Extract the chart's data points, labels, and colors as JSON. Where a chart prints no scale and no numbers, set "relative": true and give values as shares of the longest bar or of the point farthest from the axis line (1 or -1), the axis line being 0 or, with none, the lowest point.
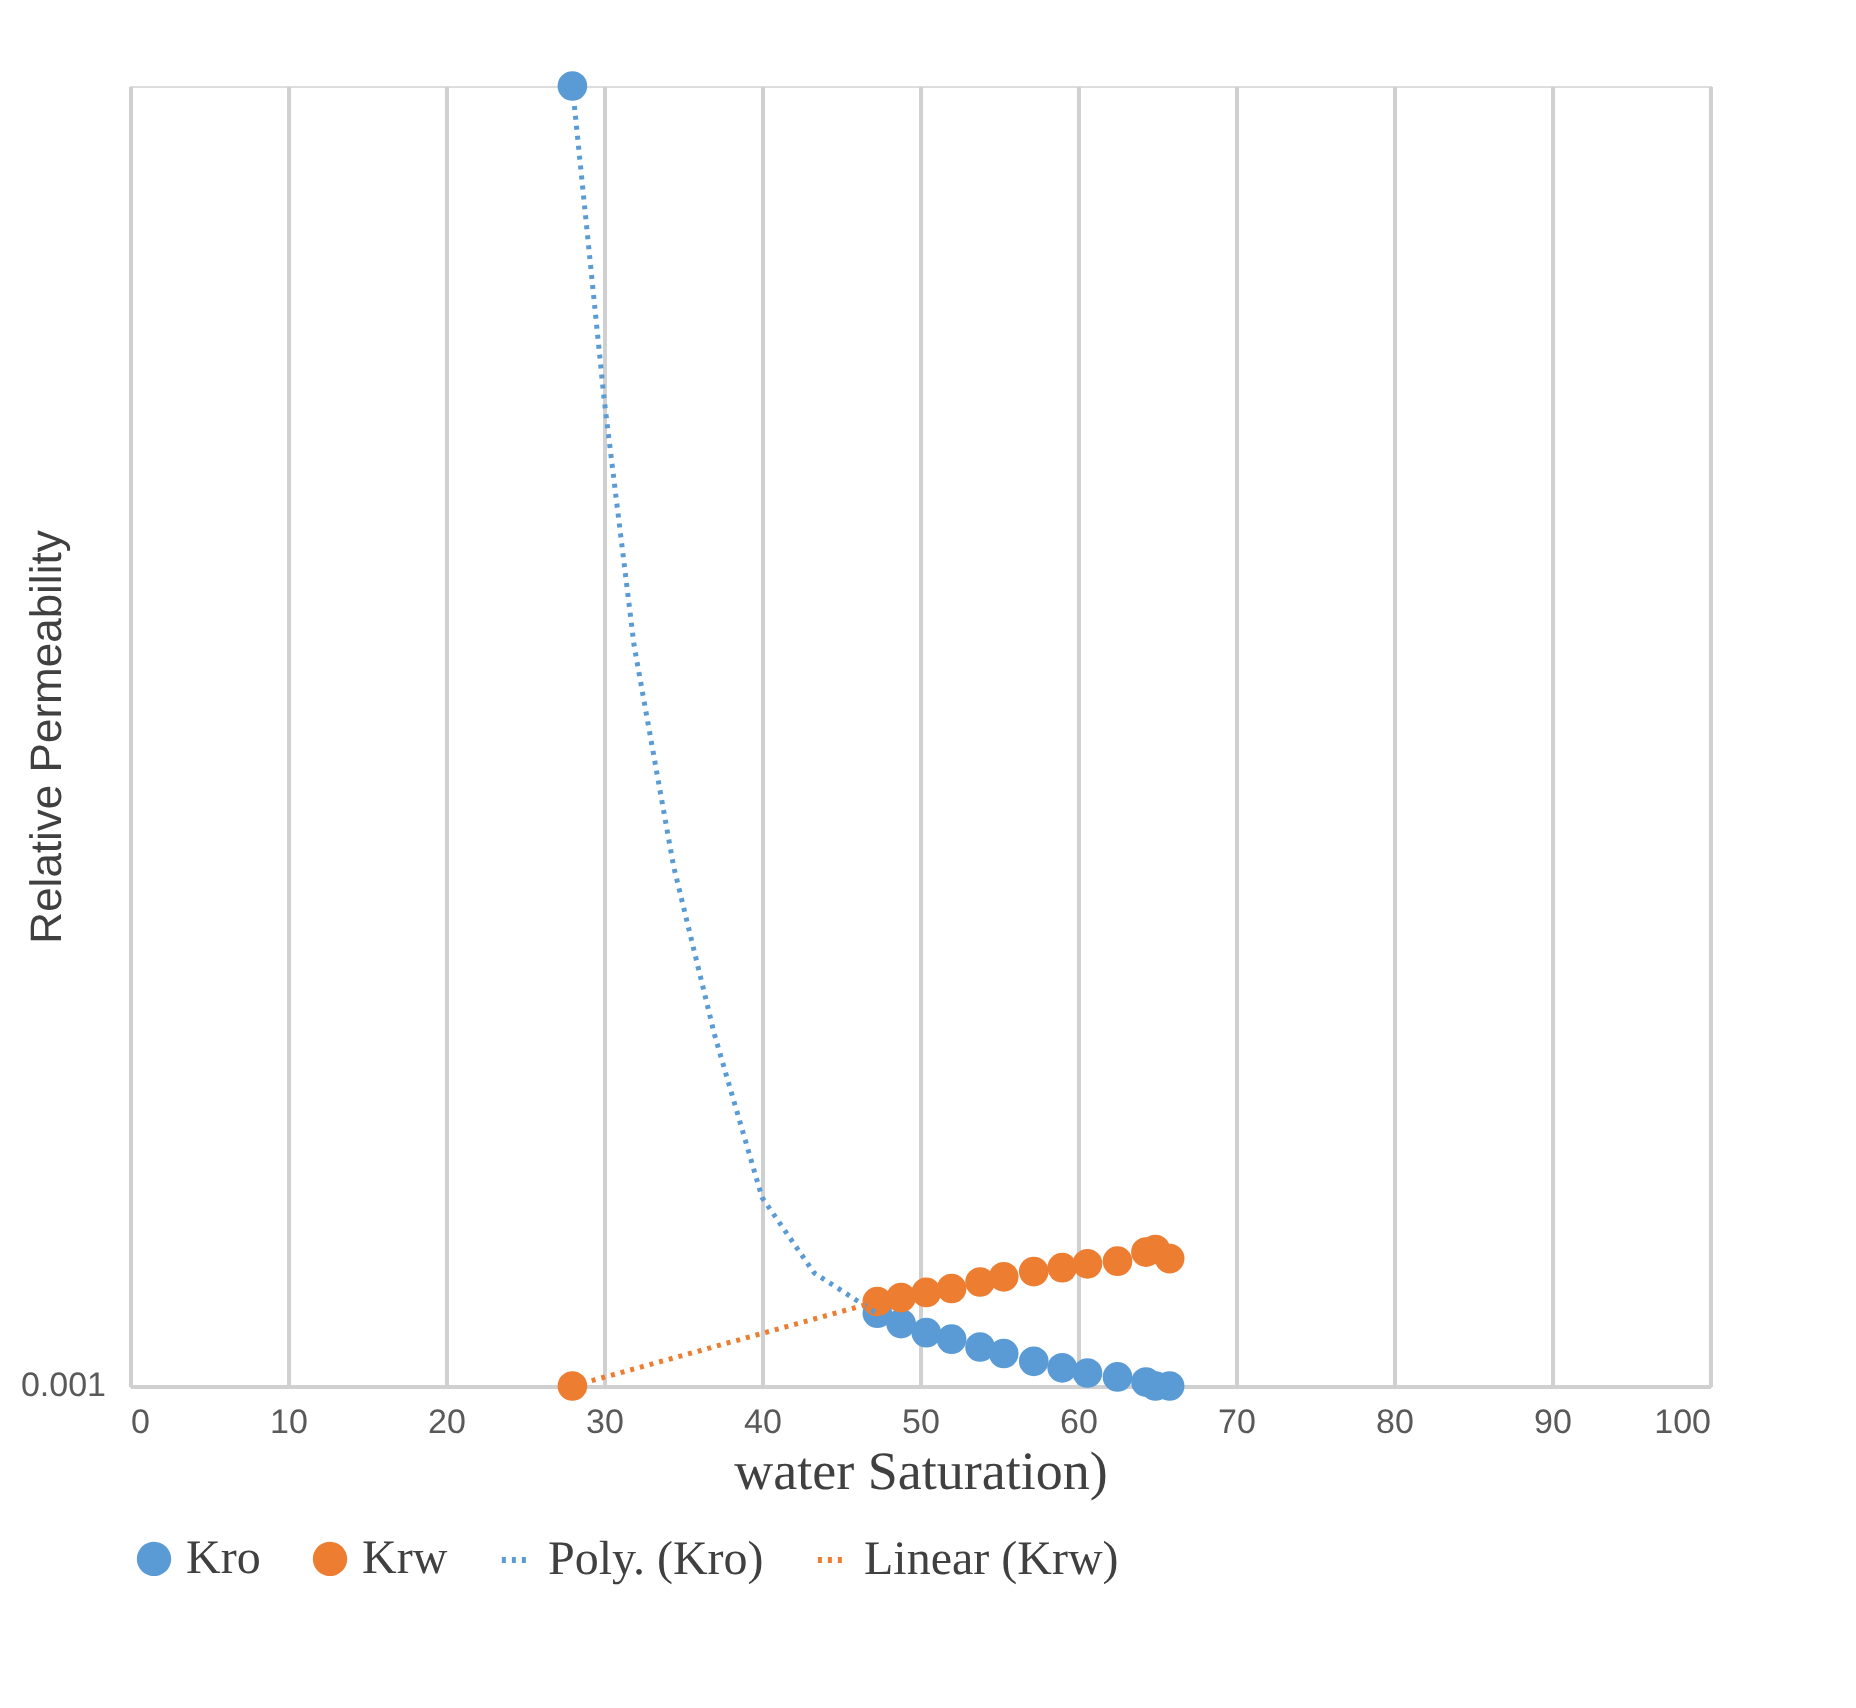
{
  "chart_data": {
    "type": "scatter",
    "xlabel": "water Saturation)",
    "ylabel": "Relative Permeability",
    "relative": true,
    "xlim": [
      0,
      100
    ],
    "xticks": [
      0,
      10,
      20,
      30,
      40,
      50,
      60,
      70,
      80,
      90,
      100
    ],
    "grid": "x",
    "legend": "bottom",
    "marker": "circle",
    "annotations": [
      "0.001"
    ],
    "series": [
      {
        "name": "Kro",
        "color": "#5b9bd5",
        "x": [
          28,
          47.3,
          48.8,
          50.4,
          52.0,
          53.8,
          55.3,
          57.2,
          59.0,
          60.6,
          62.5,
          64.3,
          64.9,
          65.8
        ],
        "values": [
          1.0,
          0.056,
          0.048,
          0.041,
          0.036,
          0.03,
          0.025,
          0.019,
          0.014,
          0.01,
          0.007,
          0.003,
          0.0,
          0.0
        ]
      },
      {
        "name": "Krw",
        "color": "#ed7d31",
        "x": [
          28,
          47.3,
          48.8,
          50.4,
          52.0,
          53.8,
          55.3,
          57.2,
          59.0,
          60.6,
          62.5,
          64.3,
          64.9,
          65.8
        ],
        "values": [
          0.0,
          0.065,
          0.068,
          0.072,
          0.075,
          0.08,
          0.084,
          0.088,
          0.091,
          0.094,
          0.096,
          0.103,
          0.105,
          0.098
        ]
      },
      {
        "name": "Poly. (Kro)",
        "color": "#5b9bd5",
        "type": "line",
        "line_style": "dotted",
        "marker": "none",
        "x": [
          28,
          30,
          31.9,
          34.4,
          37,
          40,
          43.3,
          47.5
        ],
        "values": [
          1.0,
          0.76,
          0.57,
          0.4,
          0.27,
          0.145,
          0.087,
          0.054
        ]
      },
      {
        "name": "Linear (Krw)",
        "color": "#ed7d31",
        "type": "line",
        "line_style": "dotted",
        "marker": "none",
        "x": [
          28,
          47.3
        ],
        "values": [
          0.0,
          0.065
        ]
      }
    ]
  }
}
